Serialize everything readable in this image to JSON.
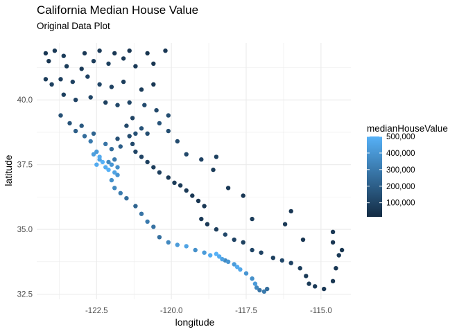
{
  "chart_data": {
    "type": "scatter",
    "title": "California Median House Value",
    "subtitle": "Original Data Plot",
    "xlabel": "longitude",
    "ylabel": "latitude",
    "xlim": [
      -124.5,
      -114.0
    ],
    "ylim": [
      32.3,
      42.2
    ],
    "x_ticks": [
      -122.5,
      -120.0,
      -117.5,
      -115.0
    ],
    "x_tick_labels": [
      "-122.5",
      "-120.0",
      "-117.5",
      "-115.0"
    ],
    "y_ticks": [
      32.5,
      35.0,
      37.5,
      40.0
    ],
    "y_tick_labels": [
      "32.5",
      "35.0",
      "37.5",
      "40.0"
    ],
    "grid": true,
    "legend": {
      "title": "medianHouseValue",
      "position": "right",
      "breaks": [
        100000,
        200000,
        300000,
        400000,
        500000
      ],
      "labels": [
        "100,000",
        "200,000",
        "300,000",
        "400,000",
        "500,000"
      ],
      "range": [
        15000,
        500001
      ],
      "color_low": "#132B43",
      "color_high": "#56B1F7"
    },
    "points": [
      [
        -124.2,
        41.8,
        60000
      ],
      [
        -123.9,
        41.9,
        70000
      ],
      [
        -124.1,
        41.5,
        55000
      ],
      [
        -123.6,
        41.7,
        80000
      ],
      [
        -122.9,
        41.8,
        65000
      ],
      [
        -122.4,
        41.9,
        70000
      ],
      [
        -121.9,
        41.8,
        60000
      ],
      [
        -121.4,
        41.9,
        55000
      ],
      [
        -120.8,
        41.8,
        50000
      ],
      [
        -120.2,
        41.9,
        60000
      ],
      [
        -123.5,
        41.3,
        75000
      ],
      [
        -123.0,
        41.2,
        70000
      ],
      [
        -122.6,
        41.5,
        80000
      ],
      [
        -122.1,
        41.4,
        90000
      ],
      [
        -121.6,
        41.6,
        70000
      ],
      [
        -121.2,
        41.3,
        65000
      ],
      [
        -120.6,
        41.4,
        55000
      ],
      [
        -124.2,
        40.8,
        80000
      ],
      [
        -124.0,
        40.6,
        90000
      ],
      [
        -123.7,
        40.8,
        85000
      ],
      [
        -123.3,
        40.7,
        95000
      ],
      [
        -122.8,
        40.9,
        100000
      ],
      [
        -122.4,
        40.6,
        110000
      ],
      [
        -122.0,
        40.5,
        95000
      ],
      [
        -121.6,
        40.7,
        80000
      ],
      [
        -121.0,
        40.4,
        75000
      ],
      [
        -120.6,
        40.6,
        60000
      ],
      [
        -123.6,
        40.2,
        90000
      ],
      [
        -123.2,
        40.0,
        100000
      ],
      [
        -122.7,
        40.1,
        110000
      ],
      [
        -122.2,
        39.9,
        90000
      ],
      [
        -121.8,
        39.8,
        120000
      ],
      [
        -121.4,
        39.9,
        110000
      ],
      [
        -120.9,
        39.8,
        130000
      ],
      [
        -120.5,
        39.6,
        120000
      ],
      [
        -120.1,
        39.4,
        140000
      ],
      [
        -123.7,
        39.4,
        150000
      ],
      [
        -123.4,
        39.1,
        160000
      ],
      [
        -123.2,
        38.8,
        200000
      ],
      [
        -122.9,
        38.6,
        250000
      ],
      [
        -122.7,
        38.4,
        300000
      ],
      [
        -122.5,
        38.0,
        420000
      ],
      [
        -122.4,
        37.8,
        480000
      ],
      [
        -122.3,
        37.6,
        500000
      ],
      [
        -122.2,
        37.4,
        480000
      ],
      [
        -122.1,
        37.3,
        500000
      ],
      [
        -121.9,
        37.2,
        450000
      ],
      [
        -121.8,
        37.1,
        400000
      ],
      [
        -122.0,
        36.9,
        380000
      ],
      [
        -121.9,
        36.6,
        350000
      ],
      [
        -121.7,
        36.4,
        300000
      ],
      [
        -121.5,
        36.2,
        250000
      ],
      [
        -121.2,
        35.9,
        220000
      ],
      [
        -121.0,
        35.6,
        280000
      ],
      [
        -120.8,
        35.3,
        300000
      ],
      [
        -120.6,
        35.1,
        270000
      ],
      [
        -120.4,
        34.7,
        260000
      ],
      [
        -120.1,
        34.5,
        350000
      ],
      [
        -119.8,
        34.4,
        420000
      ],
      [
        -119.5,
        34.35,
        450000
      ],
      [
        -119.2,
        34.2,
        380000
      ],
      [
        -118.9,
        34.1,
        420000
      ],
      [
        -118.7,
        34.0,
        480000
      ],
      [
        -118.5,
        34.05,
        500000
      ],
      [
        -118.4,
        33.95,
        480000
      ],
      [
        -118.3,
        33.85,
        450000
      ],
      [
        -118.2,
        33.8,
        350000
      ],
      [
        -118.1,
        33.75,
        400000
      ],
      [
        -117.9,
        33.65,
        420000
      ],
      [
        -117.8,
        33.55,
        480000
      ],
      [
        -117.7,
        33.45,
        460000
      ],
      [
        -117.5,
        33.3,
        400000
      ],
      [
        -117.3,
        33.1,
        380000
      ],
      [
        -117.2,
        32.9,
        420000
      ],
      [
        -117.15,
        32.75,
        350000
      ],
      [
        -117.05,
        32.65,
        280000
      ],
      [
        -116.9,
        32.6,
        300000
      ],
      [
        -116.8,
        32.7,
        250000
      ],
      [
        -121.3,
        39.3,
        100000
      ],
      [
        -121.5,
        39.0,
        120000
      ],
      [
        -121.4,
        38.6,
        130000
      ],
      [
        -121.2,
        38.7,
        150000
      ],
      [
        -121.0,
        38.9,
        160000
      ],
      [
        -120.8,
        38.7,
        140000
      ],
      [
        -121.3,
        38.3,
        120000
      ],
      [
        -121.2,
        38.0,
        110000
      ],
      [
        -121.0,
        37.8,
        100000
      ],
      [
        -120.8,
        37.6,
        90000
      ],
      [
        -120.6,
        37.4,
        80000
      ],
      [
        -120.4,
        37.2,
        85000
      ],
      [
        -120.1,
        37.0,
        70000
      ],
      [
        -119.9,
        36.8,
        75000
      ],
      [
        -119.7,
        36.7,
        70000
      ],
      [
        -119.5,
        36.5,
        65000
      ],
      [
        -119.3,
        36.3,
        60000
      ],
      [
        -119.1,
        36.1,
        55000
      ],
      [
        -118.9,
        35.9,
        60000
      ],
      [
        -119.0,
        35.4,
        70000
      ],
      [
        -118.8,
        35.2,
        65000
      ],
      [
        -118.5,
        35.0,
        80000
      ],
      [
        -118.2,
        34.8,
        120000
      ],
      [
        -117.9,
        34.6,
        100000
      ],
      [
        -117.6,
        34.5,
        90000
      ],
      [
        -117.3,
        34.2,
        110000
      ],
      [
        -117.0,
        34.1,
        100000
      ],
      [
        -116.6,
        33.9,
        90000
      ],
      [
        -116.3,
        33.8,
        120000
      ],
      [
        -116.0,
        33.7,
        100000
      ],
      [
        -115.7,
        33.5,
        80000
      ],
      [
        -115.5,
        33.2,
        70000
      ],
      [
        -115.4,
        32.9,
        75000
      ],
      [
        -115.2,
        32.8,
        70000
      ],
      [
        -114.9,
        32.7,
        60000
      ],
      [
        -114.6,
        33.0,
        55000
      ],
      [
        -114.5,
        33.5,
        60000
      ],
      [
        -114.4,
        34.0,
        65000
      ],
      [
        -114.6,
        34.5,
        55000
      ],
      [
        -114.3,
        34.2,
        50000
      ],
      [
        -114.6,
        34.9,
        60000
      ],
      [
        -115.6,
        34.6,
        55000
      ],
      [
        -116.2,
        35.2,
        70000
      ],
      [
        -116.0,
        35.7,
        60000
      ],
      [
        -117.3,
        35.4,
        80000
      ],
      [
        -117.6,
        36.3,
        60000
      ],
      [
        -118.1,
        36.6,
        70000
      ],
      [
        -118.6,
        37.3,
        75000
      ],
      [
        -119.0,
        37.7,
        100000
      ],
      [
        -119.5,
        37.9,
        120000
      ],
      [
        -118.5,
        37.8,
        90000
      ],
      [
        -119.8,
        38.4,
        130000
      ],
      [
        -120.1,
        38.8,
        140000
      ],
      [
        -120.4,
        39.1,
        160000
      ],
      [
        -121.9,
        37.7,
        300000
      ],
      [
        -122.1,
        37.6,
        350000
      ],
      [
        -122.0,
        37.5,
        400000
      ],
      [
        -121.8,
        37.4,
        380000
      ],
      [
        -122.4,
        37.7,
        450000
      ],
      [
        -122.5,
        37.5,
        480000
      ],
      [
        -122.6,
        37.9,
        430000
      ],
      [
        -122.0,
        38.1,
        250000
      ],
      [
        -121.7,
        38.2,
        200000
      ],
      [
        -121.8,
        38.5,
        150000
      ],
      [
        -122.2,
        38.3,
        280000
      ],
      [
        -122.6,
        38.7,
        220000
      ],
      [
        -123.0,
        39.0,
        180000
      ]
    ]
  }
}
